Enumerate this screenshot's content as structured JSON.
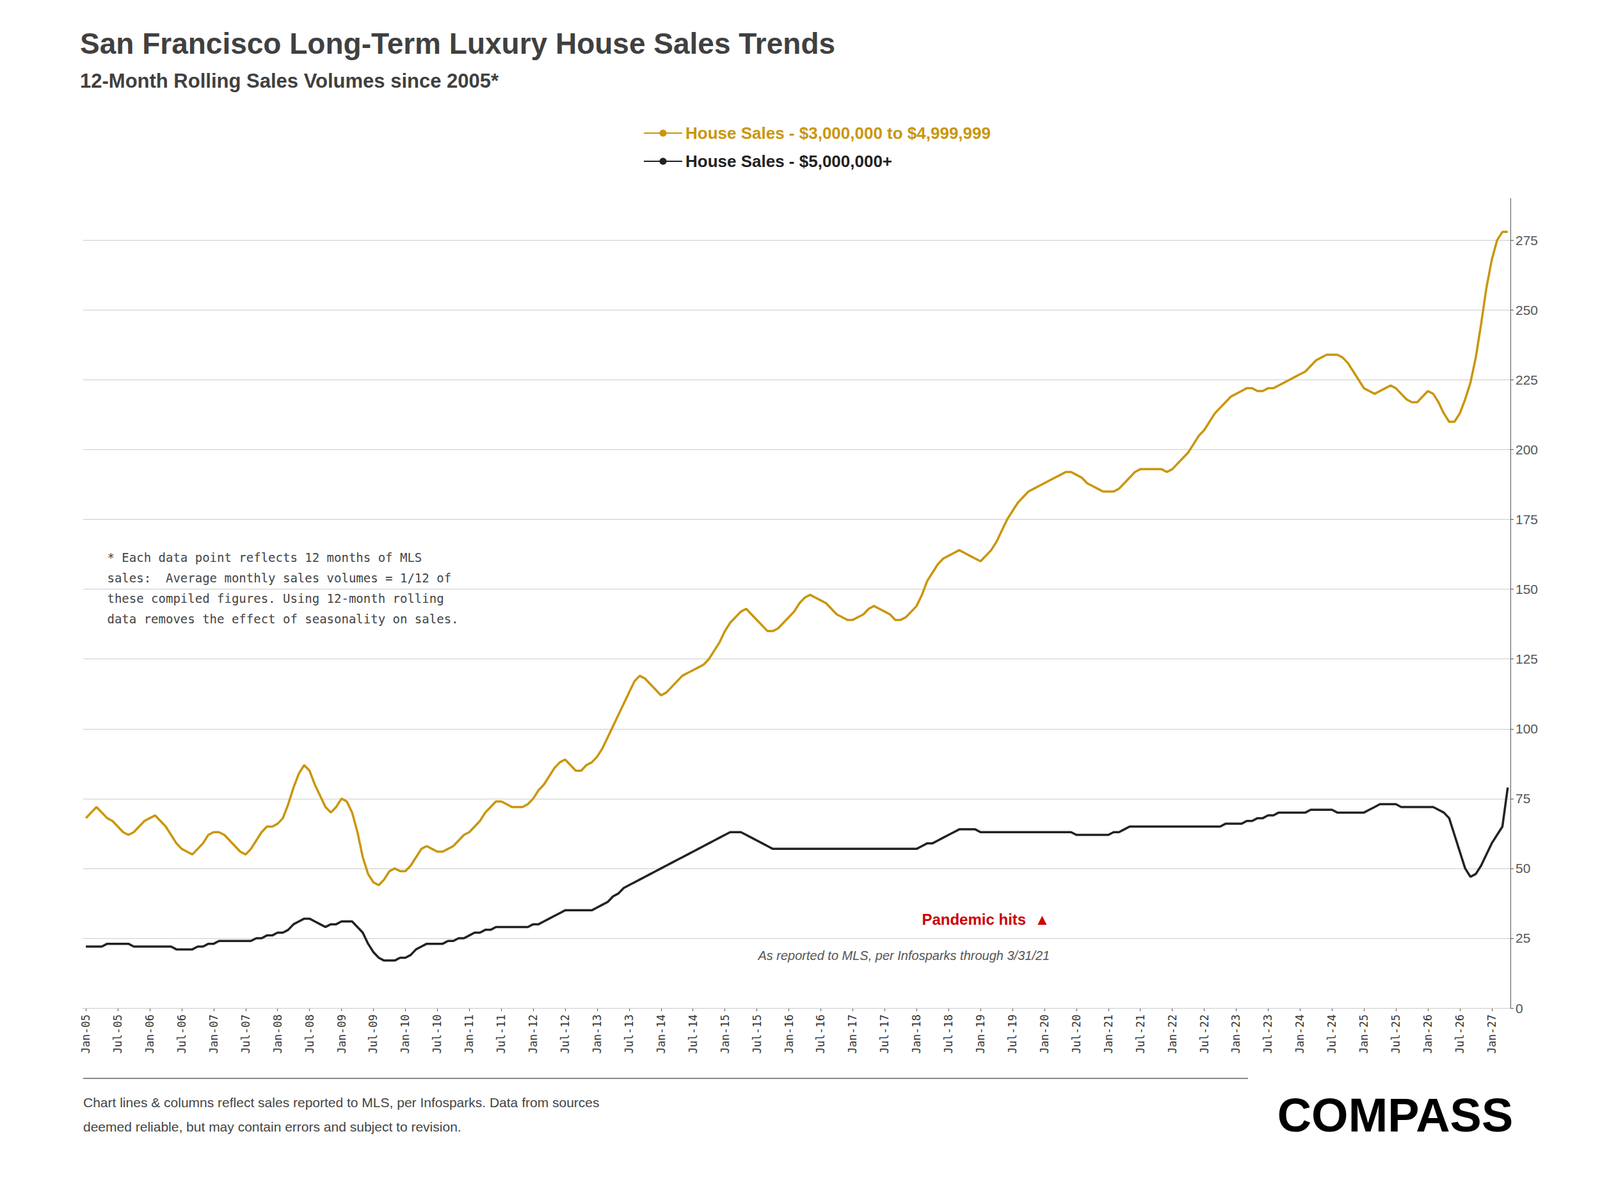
{
  "chart_data": {
    "type": "line",
    "title": "San Francisco Long-Term Luxury House Sales Trends",
    "subtitle": "12-Month Rolling Sales Volumes since 2005*",
    "annotations": [
      "* Each data point reflects 12 months of MLS\nsales:  Average monthly sales volumes = 1/12 of\nthese compiled figures. Using 12-month rolling\ndata removes the effect of seasonality on sales.",
      "Pandemic hits  ▲",
      "As reported to MLS, per Infosparks through 3/31/21",
      "Chart lines & columns reflect sales reported to MLS, per Infosparks. Data from sources\ndeemed reliable, but may contain errors and subject to revision.",
      "COMPASS"
    ],
    "categories": [
      "Jan-05",
      null,
      null,
      null,
      null,
      null,
      "Jul-05",
      null,
      null,
      null,
      null,
      null,
      "Jan-06",
      null,
      null,
      null,
      null,
      null,
      "Jul-06",
      null,
      null,
      null,
      null,
      null,
      "Jan-07",
      null,
      null,
      null,
      null,
      null,
      "Jul-07",
      null,
      null,
      null,
      null,
      null,
      "Jan-08",
      null,
      null,
      null,
      null,
      null,
      "Jul-08",
      null,
      null,
      null,
      null,
      null,
      "Jan-09",
      null,
      null,
      null,
      null,
      null,
      "Jul-09",
      null,
      null,
      null,
      null,
      null,
      "Jan-10",
      null,
      null,
      null,
      null,
      null,
      "Jul-10",
      null,
      null,
      null,
      null,
      null,
      "Jan-11",
      null,
      null,
      null,
      null,
      null,
      "Jul-11",
      null,
      null,
      null,
      null,
      null,
      "Jan-12",
      null,
      null,
      null,
      null,
      null,
      "Jul-12",
      null,
      null,
      null,
      null,
      null,
      "Jan-13",
      null,
      null,
      null,
      null,
      null,
      "Jul-13",
      null,
      null,
      null,
      null,
      null,
      "Jan-14",
      null,
      null,
      null,
      null,
      null,
      "Jul-14",
      null,
      null,
      null,
      null,
      null,
      "Jan-15",
      null,
      null,
      null,
      null,
      null,
      "Jul-15",
      null,
      null,
      null,
      null,
      null,
      "Jan-16",
      null,
      null,
      null,
      null,
      null,
      "Jul-16",
      null,
      null,
      null,
      null,
      null,
      "Jan-17",
      null,
      null,
      null,
      null,
      null,
      "Jul-17",
      null,
      null,
      null,
      null,
      null,
      "Jan-18",
      null,
      null,
      null,
      null,
      null,
      "Jul-18",
      null,
      null,
      null,
      null,
      null,
      "Jan-19",
      null,
      null,
      null,
      null,
      null,
      "Jul-19",
      null,
      null,
      null,
      null,
      null,
      "Jan-20",
      null,
      null,
      null,
      null,
      null,
      "Jul-20",
      null,
      null,
      null,
      null,
      null,
      "Jan-21",
      null,
      null,
      null,
      null,
      null,
      "Jul-21",
      null,
      null,
      null,
      null,
      null,
      "Jan-22",
      null,
      null,
      null,
      null,
      null,
      "Jul-22",
      null,
      null,
      null,
      null,
      null,
      "Jan-23",
      null,
      null,
      null,
      null,
      null,
      "Jul-23",
      null,
      null,
      null,
      null,
      null,
      "Jan-24",
      null,
      null,
      null,
      null,
      null,
      "Jul-24",
      null,
      null,
      null,
      null,
      null,
      "Jan-25",
      null,
      null,
      null,
      null,
      null,
      "Jul-25",
      null,
      null,
      null,
      null,
      null,
      "Jan-26",
      null,
      null,
      null,
      null,
      null,
      "Jul-26",
      null,
      null,
      null,
      null,
      null,
      "Jan-27",
      null,
      null,
      null
    ],
    "series": [
      {
        "name": "House Sales - $3,000,000 to $4,999,999",
        "color": "#C9960C",
        "values": [
          68,
          70,
          72,
          70,
          68,
          67,
          65,
          63,
          62,
          63,
          65,
          67,
          68,
          69,
          67,
          65,
          62,
          59,
          57,
          56,
          55,
          57,
          59,
          62,
          63,
          63,
          62,
          60,
          58,
          56,
          55,
          57,
          60,
          63,
          65,
          65,
          66,
          68,
          73,
          79,
          84,
          87,
          85,
          80,
          76,
          72,
          70,
          72,
          75,
          74,
          70,
          63,
          54,
          48,
          45,
          44,
          46,
          49,
          50,
          49,
          49,
          51,
          54,
          57,
          58,
          57,
          56,
          56,
          57,
          58,
          60,
          62,
          63,
          65,
          67,
          70,
          72,
          74,
          74,
          73,
          72,
          72,
          72,
          73,
          75,
          78,
          80,
          83,
          86,
          88,
          89,
          87,
          85,
          85,
          87,
          88,
          90,
          93,
          97,
          101,
          105,
          109,
          113,
          117,
          119,
          118,
          116,
          114,
          112,
          113,
          115,
          117,
          119,
          120,
          121,
          122,
          123,
          125,
          128,
          131,
          135,
          138,
          140,
          142,
          143,
          141,
          139,
          137,
          135,
          135,
          136,
          138,
          140,
          142,
          145,
          147,
          148,
          147,
          146,
          145,
          143,
          141,
          140,
          139,
          139,
          140,
          141,
          143,
          144,
          143,
          142,
          141,
          139,
          139,
          140,
          142,
          144,
          148,
          153,
          156,
          159,
          161,
          162,
          163,
          164,
          163,
          162,
          161,
          160,
          162,
          164,
          167,
          171,
          175,
          178,
          181,
          183,
          185,
          186,
          187,
          188,
          189,
          190,
          191,
          192,
          192,
          191,
          190,
          188,
          187,
          186,
          185,
          185,
          185,
          186,
          188,
          190,
          192,
          193,
          193,
          193,
          193,
          193,
          192,
          193,
          195,
          197,
          199,
          202,
          205,
          207,
          210,
          213,
          215,
          217,
          219,
          220,
          221,
          222,
          222,
          221,
          221,
          222,
          222,
          223,
          224,
          225,
          226,
          227,
          228,
          230,
          232,
          233,
          234,
          234,
          234,
          233,
          231,
          228,
          225,
          222,
          221,
          220,
          221,
          222,
          223,
          222,
          220,
          218,
          217,
          217,
          219,
          221,
          220,
          217,
          213,
          210,
          210,
          213,
          218,
          224,
          233,
          245,
          258,
          268,
          275,
          278,
          278
        ]
      },
      {
        "name": "House Sales - $5,000,000+",
        "color": "#222222",
        "values": [
          22,
          22,
          22,
          22,
          23,
          23,
          23,
          23,
          23,
          22,
          22,
          22,
          22,
          22,
          22,
          22,
          22,
          21,
          21,
          21,
          21,
          22,
          22,
          23,
          23,
          24,
          24,
          24,
          24,
          24,
          24,
          24,
          25,
          25,
          26,
          26,
          27,
          27,
          28,
          30,
          31,
          32,
          32,
          31,
          30,
          29,
          30,
          30,
          31,
          31,
          31,
          29,
          27,
          23,
          20,
          18,
          17,
          17,
          17,
          18,
          18,
          19,
          21,
          22,
          23,
          23,
          23,
          23,
          24,
          24,
          25,
          25,
          26,
          27,
          27,
          28,
          28,
          29,
          29,
          29,
          29,
          29,
          29,
          29,
          30,
          30,
          31,
          32,
          33,
          34,
          35,
          35,
          35,
          35,
          35,
          35,
          36,
          37,
          38,
          40,
          41,
          43,
          44,
          45,
          46,
          47,
          48,
          49,
          50,
          51,
          52,
          53,
          54,
          55,
          56,
          57,
          58,
          59,
          60,
          61,
          62,
          63,
          63,
          63,
          62,
          61,
          60,
          59,
          58,
          57,
          57,
          57,
          57,
          57,
          57,
          57,
          57,
          57,
          57,
          57,
          57,
          57,
          57,
          57,
          57,
          57,
          57,
          57,
          57,
          57,
          57,
          57,
          57,
          57,
          57,
          57,
          57,
          58,
          59,
          59,
          60,
          61,
          62,
          63,
          64,
          64,
          64,
          64,
          63,
          63,
          63,
          63,
          63,
          63,
          63,
          63,
          63,
          63,
          63,
          63,
          63,
          63,
          63,
          63,
          63,
          63,
          62,
          62,
          62,
          62,
          62,
          62,
          62,
          63,
          63,
          64,
          65,
          65,
          65,
          65,
          65,
          65,
          65,
          65,
          65,
          65,
          65,
          65,
          65,
          65,
          65,
          65,
          65,
          65,
          66,
          66,
          66,
          66,
          67,
          67,
          68,
          68,
          69,
          69,
          70,
          70,
          70,
          70,
          70,
          70,
          71,
          71,
          71,
          71,
          71,
          70,
          70,
          70,
          70,
          70,
          70,
          71,
          72,
          73,
          73,
          73,
          73,
          72,
          72,
          72,
          72,
          72,
          72,
          72,
          71,
          70,
          68,
          62,
          56,
          50,
          47,
          48,
          51,
          55,
          59,
          62,
          65,
          79
        ]
      }
    ],
    "ylim": [
      0,
      290
    ],
    "yticks": [
      0,
      25,
      50,
      75,
      100,
      125,
      150,
      175,
      200,
      225,
      250,
      275
    ],
    "grid": true,
    "legend": "top"
  }
}
